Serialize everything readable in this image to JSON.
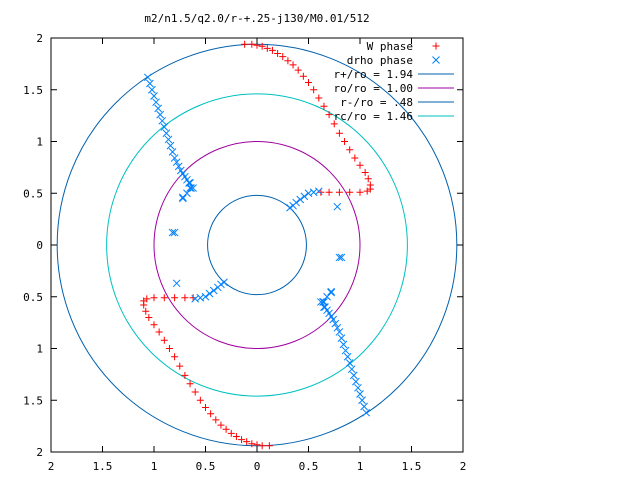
{
  "chart_data": {
    "type": "scatter",
    "title": "m2/n1.5/q2.0/r-+.25-j130/M0.01/512",
    "xlim": [
      -2,
      2
    ],
    "ylim": [
      -2,
      2
    ],
    "x_ticks": [
      "2",
      "1.5",
      "1",
      "0.5",
      "0",
      "0.5",
      "1",
      "1.5",
      "2"
    ],
    "y_ticks": [
      "2",
      "1.5",
      "1",
      "0.5",
      "0",
      "0.5",
      "1",
      "1.5",
      "2"
    ],
    "grid": false,
    "legend_position": "top-right",
    "series": [
      {
        "name": "W phase",
        "marker": "plus",
        "color": "#ff0000",
        "x": [
          -0.12,
          -0.05,
          0.0,
          0.05,
          0.1,
          0.15,
          0.2,
          0.25,
          0.3,
          0.35,
          0.4,
          0.45,
          0.5,
          0.55,
          0.6,
          0.65,
          0.7,
          0.75,
          0.8,
          0.85,
          0.9,
          0.95,
          1.0,
          1.05,
          1.08,
          1.1,
          1.1,
          1.07,
          1.0,
          0.9,
          0.8,
          0.7,
          0.62,
          0.12,
          0.05,
          0.0,
          -0.05,
          -0.1,
          -0.15,
          -0.2,
          -0.25,
          -0.3,
          -0.35,
          -0.4,
          -0.45,
          -0.5,
          -0.55,
          -0.6,
          -0.65,
          -0.7,
          -0.75,
          -0.8,
          -0.85,
          -0.9,
          -0.95,
          -1.0,
          -1.05,
          -1.08,
          -1.1,
          -1.1,
          -1.07,
          -1.0,
          -0.9,
          -0.8,
          -0.7,
          -0.62
        ],
        "y": [
          1.94,
          1.94,
          1.93,
          1.92,
          1.9,
          1.88,
          1.85,
          1.82,
          1.78,
          1.74,
          1.69,
          1.63,
          1.57,
          1.5,
          1.42,
          1.34,
          1.26,
          1.17,
          1.08,
          1.0,
          0.92,
          0.84,
          0.77,
          0.7,
          0.64,
          0.58,
          0.54,
          0.52,
          0.51,
          0.51,
          0.51,
          0.51,
          0.51,
          -1.94,
          -1.94,
          -1.93,
          -1.92,
          -1.9,
          -1.88,
          -1.85,
          -1.82,
          -1.78,
          -1.74,
          -1.69,
          -1.63,
          -1.57,
          -1.5,
          -1.42,
          -1.34,
          -1.26,
          -1.17,
          -1.08,
          -1.0,
          -0.92,
          -0.84,
          -0.77,
          -0.7,
          -0.64,
          -0.58,
          -0.54,
          -0.52,
          -0.51,
          -0.51,
          -0.51,
          -0.51,
          -0.51
        ]
      },
      {
        "name": "drho phase",
        "marker": "cross",
        "color": "#0080ff",
        "x": [
          -1.06,
          -1.04,
          -1.02,
          -1.0,
          -0.98,
          -0.96,
          -0.94,
          -0.92,
          -0.9,
          -0.88,
          -0.86,
          -0.84,
          -0.82,
          -0.8,
          -0.78,
          -0.76,
          -0.74,
          -0.72,
          -0.7,
          -0.68,
          -0.65,
          -0.64,
          -0.65,
          -0.68,
          -0.72,
          -0.82,
          -0.78,
          0.32,
          0.35,
          0.38,
          0.42,
          0.46,
          0.5,
          0.55,
          0.6,
          0.62,
          0.66,
          0.72,
          0.8,
          1.06,
          1.04,
          1.02,
          1.0,
          0.98,
          0.96,
          0.94,
          0.92,
          0.9,
          0.88,
          0.86,
          0.84,
          0.82,
          0.8,
          0.78,
          0.76,
          0.74,
          0.72,
          0.7,
          0.68,
          0.65,
          0.64,
          0.65,
          0.68,
          0.72,
          0.82,
          0.78,
          -0.32,
          -0.35,
          -0.38,
          -0.42,
          -0.46,
          -0.5,
          -0.55,
          -0.6,
          -0.62,
          -0.66,
          -0.72,
          -0.8
        ],
        "y": [
          1.62,
          1.56,
          1.5,
          1.44,
          1.38,
          1.32,
          1.26,
          1.2,
          1.14,
          1.08,
          1.02,
          0.96,
          0.9,
          0.84,
          0.8,
          0.76,
          0.72,
          0.69,
          0.66,
          0.63,
          0.6,
          0.55,
          0.55,
          0.5,
          0.46,
          0.12,
          -0.37,
          0.36,
          0.38,
          0.41,
          0.44,
          0.47,
          0.5,
          0.51,
          0.52,
          -0.55,
          -0.6,
          -0.45,
          -0.12,
          -1.62,
          -1.56,
          -1.5,
          -1.44,
          -1.38,
          -1.32,
          -1.26,
          -1.2,
          -1.14,
          -1.08,
          -1.02,
          -0.96,
          -0.9,
          -0.84,
          -0.8,
          -0.76,
          -0.72,
          -0.69,
          -0.66,
          -0.63,
          -0.6,
          -0.55,
          -0.55,
          -0.5,
          -0.46,
          -0.12,
          0.37,
          -0.36,
          -0.38,
          -0.41,
          -0.44,
          -0.47,
          -0.5,
          -0.51,
          -0.52,
          0.55,
          0.6,
          0.45,
          0.12
        ]
      },
      {
        "name": "r+/ro = 1.94",
        "type": "circle",
        "radius": 1.94,
        "color": "#0060ad"
      },
      {
        "name": "ro/ro = 1.00",
        "type": "circle",
        "radius": 1.0,
        "color": "#a000a0"
      },
      {
        "name": "r-/ro = .48",
        "type": "circle",
        "radius": 0.48,
        "color": "#0060ad"
      },
      {
        "name": "rc/ro = 1.46",
        "type": "circle",
        "radius": 1.46,
        "color": "#00c0c0"
      }
    ]
  }
}
